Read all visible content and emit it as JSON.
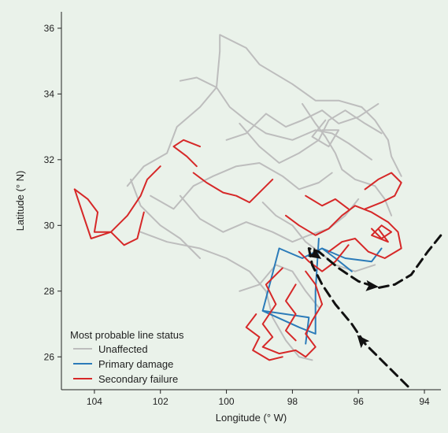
{
  "chart_data": {
    "type": "map",
    "xlabel": "Longitude (° W)",
    "ylabel": "Latitude (° N)",
    "xlim": [
      105,
      93.5
    ],
    "ylim": [
      25,
      36.5
    ],
    "x_ticks": [
      104,
      102,
      100,
      98,
      96,
      94
    ],
    "y_ticks": [
      26,
      28,
      30,
      32,
      34,
      36
    ],
    "legend": {
      "title": "Most probable line status",
      "placement": "bottom-left",
      "entries": [
        {
          "label": "Unaffected",
          "color": "#bdbdbd"
        },
        {
          "label": "Primary damage",
          "color": "#2b7bb9"
        },
        {
          "label": "Secondary failure",
          "color": "#d62828"
        }
      ]
    },
    "grid": false,
    "series": [
      {
        "name": "Unaffected",
        "color": "#bdbdbd",
        "lines": [
          [
            [
              103,
              31.2
            ],
            [
              102.5,
              31.8
            ],
            [
              101.8,
              32.2
            ],
            [
              101.5,
              33.0
            ],
            [
              100.8,
              33.6
            ],
            [
              100.3,
              34.2
            ],
            [
              100.2,
              35.3
            ],
            [
              100.2,
              35.8
            ],
            [
              99.4,
              35.4
            ],
            [
              99.0,
              34.9
            ],
            [
              98.0,
              34.3
            ],
            [
              97.3,
              33.8
            ],
            [
              96.6,
              33.8
            ],
            [
              95.9,
              33.6
            ],
            [
              95.5,
              33.2
            ],
            [
              95.1,
              32.6
            ],
            [
              95.0,
              32.1
            ],
            [
              94.7,
              31.5
            ]
          ],
          [
            [
              101.4,
              34.4
            ],
            [
              100.9,
              34.5
            ],
            [
              100.3,
              34.2
            ],
            [
              99.9,
              33.6
            ],
            [
              99.4,
              33.2
            ],
            [
              98.8,
              32.8
            ],
            [
              98.0,
              32.6
            ],
            [
              97.3,
              32.9
            ],
            [
              96.8,
              32.8
            ],
            [
              96.3,
              32.5
            ],
            [
              95.6,
              32.0
            ]
          ],
          [
            [
              102.3,
              30.9
            ],
            [
              101.6,
              30.5
            ],
            [
              101.0,
              31.2
            ],
            [
              100.4,
              31.5
            ],
            [
              99.7,
              31.8
            ],
            [
              99.0,
              31.9
            ],
            [
              98.3,
              31.5
            ],
            [
              97.8,
              31.1
            ],
            [
              97.2,
              31.3
            ],
            [
              96.8,
              31.6
            ]
          ],
          [
            [
              102.6,
              29.8
            ],
            [
              101.8,
              29.5
            ],
            [
              100.8,
              29.3
            ],
            [
              100.0,
              29.0
            ],
            [
              99.3,
              28.6
            ],
            [
              98.8,
              28.0
            ],
            [
              98.6,
              27.2
            ],
            [
              98.2,
              26.5
            ],
            [
              97.8,
              26.0
            ],
            [
              97.4,
              25.9
            ]
          ],
          [
            [
              101.4,
              30.9
            ],
            [
              100.8,
              30.2
            ],
            [
              100.1,
              29.8
            ],
            [
              99.4,
              30.1
            ],
            [
              98.6,
              29.8
            ],
            [
              98.0,
              29.5
            ],
            [
              97.5,
              29.7
            ],
            [
              96.9,
              29.9
            ],
            [
              96.4,
              30.3
            ],
            [
              96.0,
              30.8
            ]
          ],
          [
            [
              99.6,
              33.1
            ],
            [
              99.0,
              32.4
            ],
            [
              98.4,
              31.9
            ],
            [
              97.8,
              32.2
            ],
            [
              97.2,
              32.6
            ],
            [
              96.9,
              33.2
            ],
            [
              96.4,
              33.5
            ],
            [
              95.8,
              33.1
            ],
            [
              95.3,
              32.8
            ]
          ],
          [
            [
              97.7,
              33.7
            ],
            [
              97.3,
              33.1
            ],
            [
              97.0,
              32.7
            ],
            [
              96.7,
              32.2
            ],
            [
              96.5,
              31.7
            ],
            [
              96.1,
              31.4
            ],
            [
              95.5,
              31.2
            ],
            [
              95.2,
              30.8
            ],
            [
              95.0,
              30.3
            ]
          ],
          [
            [
              98.9,
              30.7
            ],
            [
              98.5,
              30.3
            ],
            [
              98.0,
              30.0
            ],
            [
              97.6,
              29.5
            ],
            [
              97.2,
              29.2
            ],
            [
              96.7,
              28.8
            ],
            [
              96.1,
              28.6
            ],
            [
              95.5,
              28.8
            ]
          ],
          [
            [
              100.0,
              32.6
            ],
            [
              99.4,
              32.8
            ],
            [
              98.8,
              33.4
            ],
            [
              98.2,
              33.0
            ],
            [
              97.7,
              33.2
            ],
            [
              97.1,
              33.5
            ],
            [
              96.6,
              33.1
            ],
            [
              96.0,
              33.3
            ],
            [
              95.4,
              33.7
            ]
          ],
          [
            [
              97.1,
              32.9
            ],
            [
              96.6,
              32.9
            ],
            [
              96.9,
              32.4
            ],
            [
              97.4,
              32.7
            ],
            [
              97.0,
              33.2
            ]
          ],
          [
            [
              102.9,
              31.4
            ],
            [
              102.6,
              30.6
            ],
            [
              102.0,
              30.0
            ],
            [
              101.4,
              29.6
            ],
            [
              100.8,
              29.0
            ]
          ],
          [
            [
              99.6,
              28.0
            ],
            [
              99.0,
              28.2
            ],
            [
              98.5,
              28.8
            ],
            [
              98.0,
              28.6
            ],
            [
              97.6,
              28.0
            ],
            [
              97.2,
              27.5
            ]
          ]
        ]
      },
      {
        "name": "Primary damage",
        "color": "#2b7bb9",
        "lines": [
          [
            [
              98.4,
              29.3
            ],
            [
              97.7,
              29.0
            ],
            [
              97.1,
              29.3
            ],
            [
              96.7,
              29.0
            ],
            [
              96.2,
              28.6
            ]
          ],
          [
            [
              98.4,
              29.3
            ],
            [
              98.9,
              27.4
            ],
            [
              97.8,
              26.9
            ],
            [
              97.3,
              26.7
            ],
            [
              97.3,
              28.0
            ],
            [
              97.2,
              29.6
            ]
          ],
          [
            [
              98.9,
              27.4
            ],
            [
              97.5,
              27.2
            ],
            [
              97.6,
              26.4
            ]
          ],
          [
            [
              97.1,
              29.3
            ],
            [
              96.4,
              29.0
            ],
            [
              95.6,
              28.9
            ],
            [
              95.3,
              29.3
            ]
          ]
        ]
      },
      {
        "name": "Secondary failure",
        "color": "#d62828",
        "lines": [
          [
            [
              104.6,
              31.1
            ],
            [
              104.2,
              30.8
            ],
            [
              103.9,
              30.4
            ],
            [
              104.0,
              29.8
            ],
            [
              103.5,
              29.8
            ],
            [
              103.0,
              30.3
            ],
            [
              102.6,
              30.9
            ],
            [
              102.4,
              31.4
            ],
            [
              102.0,
              31.8
            ]
          ],
          [
            [
              104.6,
              31.1
            ],
            [
              104.3,
              30.2
            ],
            [
              104.1,
              29.6
            ],
            [
              103.5,
              29.8
            ],
            [
              103.1,
              29.4
            ],
            [
              102.7,
              29.6
            ],
            [
              102.5,
              30.4
            ]
          ],
          [
            [
              101.0,
              31.6
            ],
            [
              100.6,
              31.3
            ],
            [
              100.1,
              31.0
            ],
            [
              99.7,
              30.9
            ],
            [
              99.3,
              30.7
            ],
            [
              99.0,
              31.0
            ],
            [
              98.6,
              31.4
            ]
          ],
          [
            [
              100.9,
              31.8
            ],
            [
              101.2,
              32.1
            ],
            [
              101.6,
              32.4
            ],
            [
              101.3,
              32.6
            ],
            [
              100.8,
              32.4
            ]
          ],
          [
            [
              98.2,
              30.3
            ],
            [
              97.8,
              30.0
            ],
            [
              97.3,
              29.7
            ],
            [
              96.9,
              29.9
            ],
            [
              96.5,
              30.3
            ],
            [
              96.1,
              30.6
            ],
            [
              95.6,
              30.4
            ],
            [
              95.1,
              30.1
            ],
            [
              94.8,
              29.8
            ],
            [
              94.7,
              29.3
            ],
            [
              95.2,
              29.0
            ],
            [
              95.7,
              29.2
            ],
            [
              96.1,
              29.6
            ],
            [
              96.5,
              29.5
            ],
            [
              96.9,
              29.2
            ]
          ],
          [
            [
              95.6,
              29.9
            ],
            [
              95.3,
              29.6
            ],
            [
              95.0,
              29.8
            ],
            [
              95.3,
              30.0
            ],
            [
              95.6,
              29.7
            ],
            [
              95.1,
              29.5
            ],
            [
              95.4,
              29.9
            ]
          ],
          [
            [
              95.8,
              31.1
            ],
            [
              95.4,
              31.4
            ],
            [
              95.0,
              31.6
            ],
            [
              94.7,
              31.3
            ],
            [
              94.9,
              30.9
            ],
            [
              95.3,
              30.7
            ],
            [
              95.8,
              30.5
            ]
          ],
          [
            [
              98.3,
              28.7
            ],
            [
              98.8,
              28.2
            ],
            [
              98.5,
              27.6
            ],
            [
              98.9,
              27.0
            ],
            [
              98.6,
              26.6
            ],
            [
              98.9,
              26.3
            ],
            [
              98.4,
              26.1
            ],
            [
              97.9,
              26.2
            ],
            [
              97.6,
              26.0
            ],
            [
              97.3,
              26.3
            ],
            [
              97.6,
              26.7
            ],
            [
              97.4,
              27.1
            ],
            [
              97.1,
              27.6
            ],
            [
              97.3,
              28.2
            ],
            [
              97.6,
              28.6
            ]
          ],
          [
            [
              99.1,
              27.3
            ],
            [
              99.4,
              26.9
            ],
            [
              99.0,
              26.6
            ],
            [
              99.2,
              26.2
            ],
            [
              98.7,
              25.9
            ],
            [
              98.3,
              26.0
            ]
          ],
          [
            [
              97.9,
              28.2
            ],
            [
              98.2,
              27.7
            ],
            [
              97.9,
              27.3
            ],
            [
              98.2,
              26.8
            ],
            [
              97.9,
              26.5
            ]
          ],
          [
            [
              96.3,
              29.4
            ],
            [
              96.7,
              28.9
            ],
            [
              97.1,
              28.6
            ],
            [
              97.5,
              28.9
            ],
            [
              97.8,
              29.2
            ]
          ],
          [
            [
              97.6,
              30.9
            ],
            [
              97.1,
              30.6
            ],
            [
              96.7,
              30.8
            ],
            [
              96.3,
              30.5
            ]
          ]
        ]
      }
    ],
    "hurricane_track": {
      "style": "dashed-black",
      "points": [
        [
          94.5,
          25.1
        ],
        [
          95.1,
          25.7
        ],
        [
          95.8,
          26.4
        ],
        [
          96.2,
          27.0
        ],
        [
          96.7,
          27.6
        ],
        [
          97.1,
          28.2
        ],
        [
          97.4,
          28.8
        ],
        [
          97.5,
          29.3
        ],
        [
          97.2,
          29.2
        ],
        [
          96.6,
          28.7
        ],
        [
          96.0,
          28.3
        ],
        [
          95.4,
          28.1
        ],
        [
          94.9,
          28.2
        ],
        [
          94.4,
          28.5
        ],
        [
          93.9,
          29.2
        ],
        [
          93.5,
          29.7
        ]
      ],
      "arrows": [
        [
          95.9,
          26.5
        ],
        [
          97.3,
          29.1
        ],
        [
          95.6,
          28.15
        ]
      ]
    }
  }
}
